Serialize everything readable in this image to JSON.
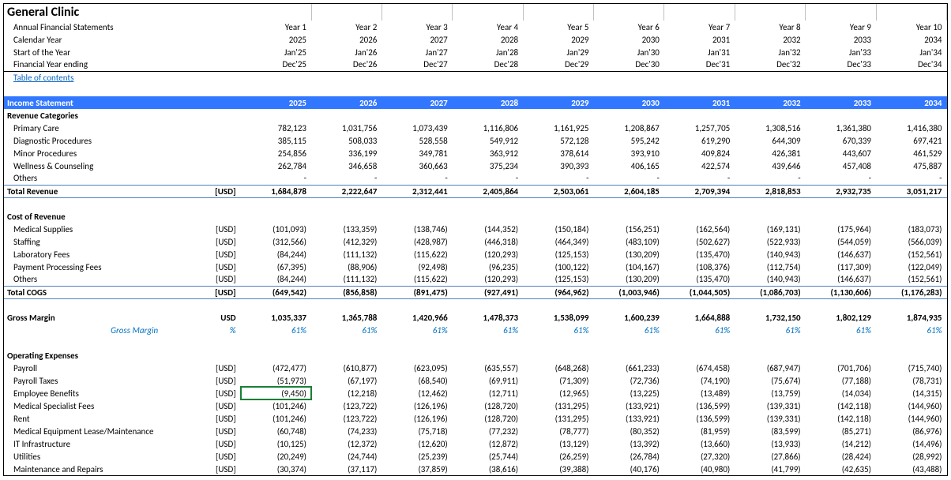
{
  "title": "General Clinic",
  "meta_rows": [
    {
      "label": "Annual Financial Statements",
      "vals": [
        "Year 1",
        "Year 2",
        "Year 3",
        "Year 4",
        "Year 5",
        "Year 6",
        "Year 7",
        "Year 8",
        "Year 9",
        "Year 10"
      ]
    },
    {
      "label": "Calendar Year",
      "vals": [
        "2025",
        "2026",
        "2027",
        "2028",
        "2029",
        "2030",
        "2031",
        "2032",
        "2033",
        "2034"
      ]
    },
    {
      "label": "Start of the Year",
      "vals": [
        "Jan'25",
        "Jan'26",
        "Jan'27",
        "Jan'28",
        "Jan'29",
        "Jan'30",
        "Jan'31",
        "Jan'32",
        "Jan'33",
        "Jan'34"
      ]
    },
    {
      "label": "Financial Year ending",
      "vals": [
        "Dec'25",
        "Dec'26",
        "Dec'27",
        "Dec'28",
        "Dec'29",
        "Dec'30",
        "Dec'31",
        "Dec'32",
        "Dec'33",
        "Dec'34"
      ]
    }
  ],
  "toc": "Table of contents",
  "income_header": {
    "label": "Income Statement",
    "unit": "",
    "years": [
      "2025",
      "2026",
      "2027",
      "2028",
      "2029",
      "2030",
      "2031",
      "2032",
      "2033",
      "2034"
    ]
  },
  "revenue_cat_label": "Revenue Categories",
  "revenue_rows": [
    {
      "label": "Primary Care",
      "unit": "",
      "vals": [
        "782,123",
        "1,031,756",
        "1,073,439",
        "1,116,806",
        "1,161,925",
        "1,208,867",
        "1,257,705",
        "1,308,516",
        "1,361,380",
        "1,416,380"
      ]
    },
    {
      "label": "Diagnostic Procedures",
      "unit": "",
      "vals": [
        "385,115",
        "508,033",
        "528,558",
        "549,912",
        "572,128",
        "595,242",
        "619,290",
        "644,309",
        "670,339",
        "697,421"
      ]
    },
    {
      "label": "Minor Procedures",
      "unit": "",
      "vals": [
        "254,856",
        "336,199",
        "349,781",
        "363,912",
        "378,614",
        "393,910",
        "409,824",
        "426,381",
        "443,607",
        "461,529"
      ]
    },
    {
      "label": "Wellness & Counseling",
      "unit": "",
      "vals": [
        "262,784",
        "346,658",
        "360,663",
        "375,234",
        "390,393",
        "406,165",
        "422,574",
        "439,646",
        "457,408",
        "475,887"
      ]
    },
    {
      "label": "Others",
      "unit": "",
      "vals": [
        "-",
        "-",
        "-",
        "-",
        "-",
        "-",
        "-",
        "-",
        "-",
        "-"
      ]
    }
  ],
  "total_revenue": {
    "label": "Total Revenue",
    "unit": "[USD]",
    "vals": [
      "1,684,878",
      "2,222,647",
      "2,312,441",
      "2,405,864",
      "2,503,061",
      "2,604,185",
      "2,709,394",
      "2,818,853",
      "2,932,735",
      "3,051,217"
    ]
  },
  "cor_label": "Cost of Revenue",
  "cor_rows": [
    {
      "label": "Medical Supplies",
      "unit": "[USD]",
      "vals": [
        "(101,093)",
        "(133,359)",
        "(138,746)",
        "(144,352)",
        "(150,184)",
        "(156,251)",
        "(162,564)",
        "(169,131)",
        "(175,964)",
        "(183,073)"
      ]
    },
    {
      "label": "Staffing",
      "unit": "[USD]",
      "vals": [
        "(312,566)",
        "(412,329)",
        "(428,987)",
        "(446,318)",
        "(464,349)",
        "(483,109)",
        "(502,627)",
        "(522,933)",
        "(544,059)",
        "(566,039)"
      ]
    },
    {
      "label": "Laboratory Fees",
      "unit": "[USD]",
      "vals": [
        "(84,244)",
        "(111,132)",
        "(115,622)",
        "(120,293)",
        "(125,153)",
        "(130,209)",
        "(135,470)",
        "(140,943)",
        "(146,637)",
        "(152,561)"
      ]
    },
    {
      "label": "Payment Processing Fees",
      "unit": "[USD]",
      "vals": [
        "(67,395)",
        "(88,906)",
        "(92,498)",
        "(96,235)",
        "(100,122)",
        "(104,167)",
        "(108,376)",
        "(112,754)",
        "(117,309)",
        "(122,049)"
      ]
    },
    {
      "label": "Others",
      "unit": "[USD]",
      "vals": [
        "(84,244)",
        "(111,132)",
        "(115,622)",
        "(120,293)",
        "(125,153)",
        "(130,209)",
        "(135,470)",
        "(140,943)",
        "(146,637)",
        "(152,561)"
      ]
    }
  ],
  "total_cogs": {
    "label": "Total COGS",
    "unit": "[USD]",
    "vals": [
      "(649,542)",
      "(856,858)",
      "(891,475)",
      "(927,491)",
      "(964,962)",
      "(1,003,946)",
      "(1,044,505)",
      "(1,086,703)",
      "(1,130,606)",
      "(1,176,283)"
    ]
  },
  "gross_margin": {
    "label": "Gross Margin",
    "unit": "USD",
    "vals": [
      "1,035,337",
      "1,365,788",
      "1,420,966",
      "1,478,373",
      "1,538,099",
      "1,600,239",
      "1,664,888",
      "1,732,150",
      "1,802,129",
      "1,874,935"
    ]
  },
  "gross_margin_pct": {
    "label": "Gross Margin",
    "unit": "%",
    "vals": [
      "61%",
      "61%",
      "61%",
      "61%",
      "61%",
      "61%",
      "61%",
      "61%",
      "61%",
      "61%"
    ]
  },
  "opex_label": "Operating Expenses",
  "opex_rows": [
    {
      "label": "Payroll",
      "unit": "[USD]",
      "vals": [
        "(472,477)",
        "(610,877)",
        "(623,095)",
        "(635,557)",
        "(648,268)",
        "(661,233)",
        "(674,458)",
        "(687,947)",
        "(701,706)",
        "(715,740)"
      ]
    },
    {
      "label": "Payroll Taxes",
      "unit": "[USD]",
      "vals": [
        "(51,973)",
        "(67,197)",
        "(68,540)",
        "(69,911)",
        "(71,309)",
        "(72,736)",
        "(74,190)",
        "(75,674)",
        "(77,188)",
        "(78,731)"
      ]
    },
    {
      "label": "Employee Benefits",
      "unit": "[USD]",
      "vals": [
        "(9,450)",
        "(12,218)",
        "(12,462)",
        "(12,711)",
        "(12,965)",
        "(13,225)",
        "(13,489)",
        "(13,759)",
        "(14,034)",
        "(14,315)"
      ],
      "selected": 0
    },
    {
      "label": "Medical Specialist Fees",
      "unit": "[USD]",
      "vals": [
        "(101,246)",
        "(123,722)",
        "(126,196)",
        "(128,720)",
        "(131,295)",
        "(133,921)",
        "(136,599)",
        "(139,331)",
        "(142,118)",
        "(144,960)"
      ]
    },
    {
      "label": "Rent",
      "unit": "[USD]",
      "vals": [
        "(101,246)",
        "(123,722)",
        "(126,196)",
        "(128,720)",
        "(131,295)",
        "(133,921)",
        "(136,599)",
        "(139,331)",
        "(142,118)",
        "(144,960)"
      ]
    },
    {
      "label": "Medical Equipment Lease/Maintenance",
      "unit": "[USD]",
      "vals": [
        "(60,748)",
        "(74,233)",
        "(75,718)",
        "(77,232)",
        "(78,777)",
        "(80,352)",
        "(81,959)",
        "(83,599)",
        "(85,271)",
        "(86,976)"
      ]
    },
    {
      "label": "IT Infrastructure",
      "unit": "[USD]",
      "vals": [
        "(10,125)",
        "(12,372)",
        "(12,620)",
        "(12,872)",
        "(13,129)",
        "(13,392)",
        "(13,660)",
        "(13,933)",
        "(14,212)",
        "(14,496)"
      ]
    },
    {
      "label": "Utilities",
      "unit": "[USD]",
      "vals": [
        "(20,249)",
        "(24,744)",
        "(25,239)",
        "(25,744)",
        "(26,259)",
        "(26,784)",
        "(27,320)",
        "(27,866)",
        "(28,424)",
        "(28,992)"
      ]
    },
    {
      "label": "Maintenance and Repairs",
      "unit": "[USD]",
      "vals": [
        "(30,374)",
        "(37,117)",
        "(37,859)",
        "(38,616)",
        "(39,388)",
        "(40,176)",
        "(40,980)",
        "(41,799)",
        "(42,635)",
        "(43,488)"
      ]
    }
  ]
}
